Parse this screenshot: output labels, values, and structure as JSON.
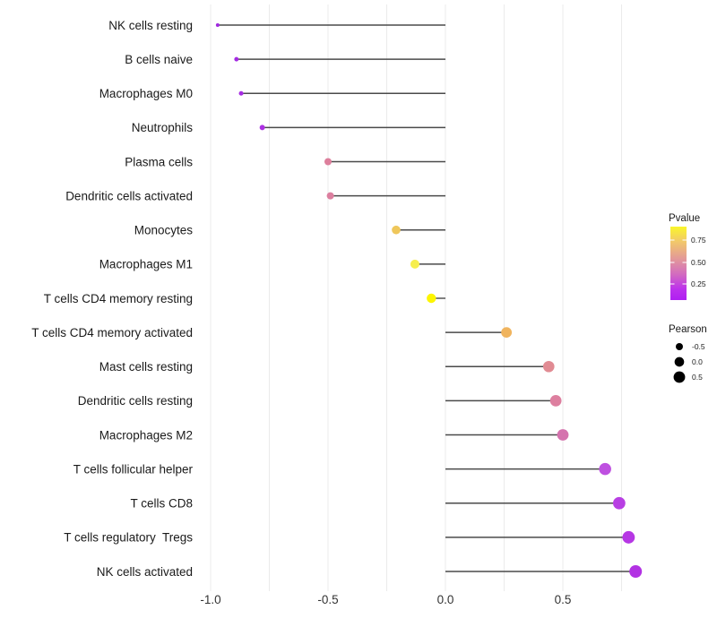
{
  "chart_data": {
    "type": "scatter",
    "variant": "horizontal-lollipop",
    "title": "",
    "xlabel": "",
    "ylabel": "",
    "x_ticks": [
      -1.0,
      -0.5,
      0.0,
      0.5
    ],
    "x_tick_labels": [
      "-1.0",
      "-0.5",
      "0.0",
      "0.5"
    ],
    "xlim": [
      -1.06,
      0.9
    ],
    "baseline": 0,
    "grid": {
      "show": true,
      "color": "#ebebeb",
      "lines_at": [
        -1.0,
        -0.75,
        -0.5,
        -0.25,
        0.0,
        0.25,
        0.5,
        0.75
      ]
    },
    "stem_color": "#4a4a4a",
    "categories": [
      "NK cells resting",
      "B cells naive",
      "Macrophages M0",
      "Neutrophils",
      "Plasma cells",
      "Dendritic cells activated",
      "Monocytes",
      "Macrophages M1",
      "T cells CD4 memory resting",
      "T cells CD4 memory activated",
      "Mast cells resting",
      "Dendritic cells resting",
      "Macrophages M2",
      "T cells follicular helper",
      "T cells CD8",
      "T cells regulatory  Tregs",
      "NK cells activated"
    ],
    "series": [
      {
        "name": "Pearson",
        "values": [
          -0.97,
          -0.89,
          -0.87,
          -0.78,
          -0.5,
          -0.49,
          -0.21,
          -0.13,
          -0.06,
          0.26,
          0.44,
          0.47,
          0.5,
          0.68,
          0.74,
          0.78,
          0.81
        ]
      }
    ],
    "point_colors": [
      "#A028E0",
      "#A42BE2",
      "#A62CE3",
      "#AC30E2",
      "#DD7F9C",
      "#DC7F9F",
      "#EFC75B",
      "#F6EE4E",
      "#FDF500",
      "#F0B45E",
      "#E18B93",
      "#DD7F9F",
      "#D573AE",
      "#BE50E0",
      "#B83FE3",
      "#B637E4",
      "#B232E3"
    ],
    "legends": {
      "pvalue": {
        "title": "Pvalue",
        "tick_labels": [
          "0.75",
          "0.50",
          "0.25"
        ],
        "low_color": "#A020F0",
        "high_color": "#FFFF00",
        "gradient": [
          {
            "offset": "0%",
            "color": "#FAF62A"
          },
          {
            "offset": "20%",
            "color": "#F2C96A"
          },
          {
            "offset": "45%",
            "color": "#E2969B"
          },
          {
            "offset": "65%",
            "color": "#D26BC0"
          },
          {
            "offset": "85%",
            "color": "#BC31EC"
          },
          {
            "offset": "100%",
            "color": "#B01FF2"
          }
        ]
      },
      "pearson": {
        "title": "Pearson",
        "dot_color": "#000000",
        "items": [
          {
            "label": "-0.5",
            "value": -0.5
          },
          {
            "label": "0.0",
            "value": 0.0
          },
          {
            "label": "0.5",
            "value": 0.5
          }
        ]
      }
    }
  }
}
